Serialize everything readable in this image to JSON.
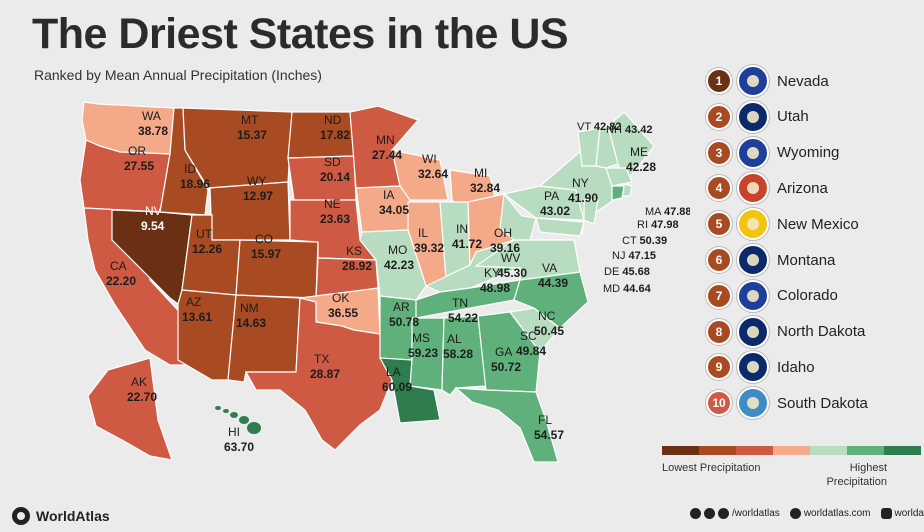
{
  "title": "The Driest States in the US",
  "subtitle": "Ranked by Mean Annual Precipitation (Inches)",
  "colors": {
    "c1": "#6b2f14",
    "c2": "#a84a22",
    "c3": "#cf5a43",
    "c4": "#f4aa89",
    "c5": "#b8dcc0",
    "c6": "#5fb07b",
    "c7": "#2f7d4f"
  },
  "states": [
    {
      "abbr": "WA",
      "value": "38.78",
      "color": "c4"
    },
    {
      "abbr": "OR",
      "value": "27.55",
      "color": "c3"
    },
    {
      "abbr": "CA",
      "value": "22.20",
      "color": "c3"
    },
    {
      "abbr": "NV",
      "value": "9.54",
      "color": "c1"
    },
    {
      "abbr": "ID",
      "value": "18.96",
      "color": "c2"
    },
    {
      "abbr": "MT",
      "value": "15.37",
      "color": "c2"
    },
    {
      "abbr": "WY",
      "value": "12.97",
      "color": "c2"
    },
    {
      "abbr": "UT",
      "value": "12.26",
      "color": "c2"
    },
    {
      "abbr": "CO",
      "value": "15.97",
      "color": "c2"
    },
    {
      "abbr": "AZ",
      "value": "13.61",
      "color": "c2"
    },
    {
      "abbr": "NM",
      "value": "14.63",
      "color": "c2"
    },
    {
      "abbr": "ND",
      "value": "17.82",
      "color": "c2"
    },
    {
      "abbr": "SD",
      "value": "20.14",
      "color": "c3"
    },
    {
      "abbr": "NE",
      "value": "23.63",
      "color": "c3"
    },
    {
      "abbr": "KS",
      "value": "28.92",
      "color": "c3"
    },
    {
      "abbr": "OK",
      "value": "36.55",
      "color": "c4"
    },
    {
      "abbr": "TX",
      "value": "28.87",
      "color": "c3"
    },
    {
      "abbr": "MN",
      "value": "27.44",
      "color": "c3"
    },
    {
      "abbr": "IA",
      "value": "34.05",
      "color": "c4"
    },
    {
      "abbr": "WI",
      "value": "32.64",
      "color": "c4"
    },
    {
      "abbr": "MI",
      "value": "32.84",
      "color": "c4"
    },
    {
      "abbr": "IL",
      "value": "39.32",
      "color": "c4"
    },
    {
      "abbr": "IN",
      "value": "41.72",
      "color": "c5"
    },
    {
      "abbr": "OH",
      "value": "39.16",
      "color": "c4"
    },
    {
      "abbr": "MO",
      "value": "42.23",
      "color": "c5"
    },
    {
      "abbr": "AR",
      "value": "50.78",
      "color": "c6"
    },
    {
      "abbr": "LA",
      "value": "60.09",
      "color": "c7"
    },
    {
      "abbr": "KY",
      "value": "48.98",
      "color": "c5"
    },
    {
      "abbr": "TN",
      "value": "54.22",
      "color": "c6"
    },
    {
      "abbr": "MS",
      "value": "59.23",
      "color": "c6"
    },
    {
      "abbr": "AL",
      "value": "58.28",
      "color": "c6"
    },
    {
      "abbr": "GA",
      "value": "50.72",
      "color": "c6"
    },
    {
      "abbr": "FL",
      "value": "54.57",
      "color": "c6"
    },
    {
      "abbr": "SC",
      "value": "49.84",
      "color": "c5"
    },
    {
      "abbr": "NC",
      "value": "50.45",
      "color": "c6"
    },
    {
      "abbr": "VA",
      "value": "44.39",
      "color": "c5"
    },
    {
      "abbr": "WV",
      "value": "45.30",
      "color": "c5"
    },
    {
      "abbr": "PA",
      "value": "43.02",
      "color": "c5"
    },
    {
      "abbr": "NY",
      "value": "41.90",
      "color": "c5"
    },
    {
      "abbr": "VT",
      "value": "42.82",
      "color": "c5"
    },
    {
      "abbr": "NH",
      "value": "43.42",
      "color": "c5"
    },
    {
      "abbr": "ME",
      "value": "42.28",
      "color": "c5"
    },
    {
      "abbr": "MA",
      "value": "47.88",
      "color": "c5"
    },
    {
      "abbr": "RI",
      "value": "47.98",
      "color": "c5"
    },
    {
      "abbr": "CT",
      "value": "50.39",
      "color": "c6"
    },
    {
      "abbr": "NJ",
      "value": "47.15",
      "color": "c5"
    },
    {
      "abbr": "DE",
      "value": "45.68",
      "color": "c5"
    },
    {
      "abbr": "MD",
      "value": "44.64",
      "color": "c5"
    },
    {
      "abbr": "AK",
      "value": "22.70",
      "color": "c3"
    },
    {
      "abbr": "HI",
      "value": "63.70",
      "color": "c7"
    }
  ],
  "ranking": [
    {
      "rank": "1",
      "name": "Nevada",
      "num_color": "#6b2f14",
      "flag_color": "#1f3f9a",
      "flag_icon": "nevada-flag-icon"
    },
    {
      "rank": "2",
      "name": "Utah",
      "num_color": "#a84a22",
      "flag_color": "#0b2a6b",
      "flag_icon": "utah-flag-icon"
    },
    {
      "rank": "3",
      "name": "Wyoming",
      "num_color": "#a84a22",
      "flag_color": "#1f3f9a",
      "flag_icon": "wyoming-flag-icon"
    },
    {
      "rank": "4",
      "name": "Arizona",
      "num_color": "#a84a22",
      "flag_color": "#c8432b",
      "flag_icon": "arizona-flag-icon"
    },
    {
      "rank": "5",
      "name": "New Mexico",
      "num_color": "#a84a22",
      "flag_color": "#f2c40f",
      "flag_icon": "new-mexico-flag-icon"
    },
    {
      "rank": "6",
      "name": "Montana",
      "num_color": "#a84a22",
      "flag_color": "#0b2a6b",
      "flag_icon": "montana-flag-icon"
    },
    {
      "rank": "7",
      "name": "Colorado",
      "num_color": "#a84a22",
      "flag_color": "#1f3f9a",
      "flag_icon": "colorado-flag-icon"
    },
    {
      "rank": "8",
      "name": "North Dakota",
      "num_color": "#a84a22",
      "flag_color": "#0b2a6b",
      "flag_icon": "north-dakota-flag-icon"
    },
    {
      "rank": "9",
      "name": "Idaho",
      "num_color": "#a84a22",
      "flag_color": "#0b2a6b",
      "flag_icon": "idaho-flag-icon"
    },
    {
      "rank": "10",
      "name": "South Dakota",
      "num_color": "#cf5a43",
      "flag_color": "#3d8cc4",
      "flag_icon": "south-dakota-flag-icon"
    }
  ],
  "legend": {
    "low": "Lowest Precipitation",
    "high": "Highest Precipitation",
    "scale": [
      "c1",
      "c2",
      "c3",
      "c4",
      "c5",
      "c6",
      "c7"
    ]
  },
  "footer": {
    "brand": "WorldAtlas",
    "social_handle": "/worldatlas",
    "website": "worldatlas.com",
    "instagram": "worldatlasig",
    "icons": [
      "globe-icon",
      "youtube-icon",
      "facebook-icon",
      "tiktok-icon",
      "website-icon",
      "instagram-icon"
    ]
  }
}
